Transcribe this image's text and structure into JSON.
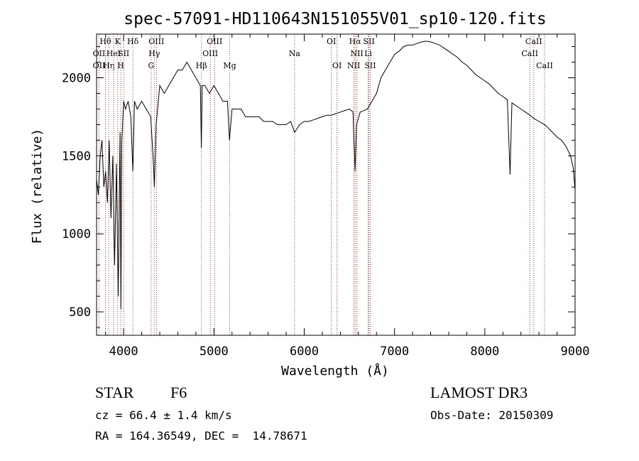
{
  "chart_data": {
    "type": "line",
    "title": "spec-57091-HD110643N151055V01_sp10-120.fits",
    "xlabel": "Wavelength (Å)",
    "ylabel": "Flux (relative)",
    "xlim": [
      3700,
      9000
    ],
    "ylim": [
      350,
      2280
    ],
    "x_ticks": [
      4000,
      5000,
      6000,
      7000,
      8000,
      9000
    ],
    "x_tick_labels": [
      "4000",
      "5000",
      "6000",
      "7000",
      "8000",
      "9000"
    ],
    "y_ticks": [
      500,
      1000,
      1500,
      2000
    ],
    "y_tick_labels": [
      "500",
      "1000",
      "1500",
      "2000"
    ],
    "series": [
      {
        "name": "spectrum",
        "x": [
          3700,
          3720,
          3740,
          3760,
          3780,
          3800,
          3820,
          3840,
          3860,
          3880,
          3900,
          3920,
          3940,
          3960,
          3970,
          3980,
          4000,
          4020,
          4050,
          4080,
          4102,
          4120,
          4150,
          4200,
          4250,
          4300,
          4330,
          4340,
          4360,
          4400,
          4450,
          4500,
          4550,
          4600,
          4650,
          4700,
          4750,
          4800,
          4850,
          4861,
          4870,
          4900,
          4950,
          5000,
          5050,
          5100,
          5150,
          5172,
          5200,
          5250,
          5300,
          5350,
          5400,
          5450,
          5500,
          5550,
          5600,
          5650,
          5700,
          5750,
          5800,
          5850,
          5893,
          5950,
          6000,
          6050,
          6100,
          6150,
          6200,
          6250,
          6300,
          6350,
          6400,
          6450,
          6500,
          6540,
          6563,
          6580,
          6620,
          6700,
          6750,
          6800,
          6850,
          6900,
          6950,
          7000,
          7050,
          7100,
          7150,
          7200,
          7250,
          7300,
          7350,
          7400,
          7450,
          7500,
          7550,
          7600,
          7650,
          7700,
          7750,
          7800,
          7850,
          7900,
          7950,
          8000,
          8050,
          8100,
          8150,
          8200,
          8250,
          8280,
          8300,
          8350,
          8400,
          8450,
          8500,
          8542,
          8600,
          8662,
          8700,
          8750,
          8800,
          8850,
          8900,
          8950,
          8980,
          9000
        ],
        "y": [
          1350,
          1250,
          1500,
          1600,
          1300,
          1400,
          1200,
          1600,
          1100,
          1500,
          800,
          1450,
          600,
          1650,
          520,
          1600,
          1850,
          1800,
          1850,
          1750,
          1400,
          1850,
          1800,
          1850,
          1800,
          1750,
          1450,
          1300,
          1700,
          1950,
          1900,
          1950,
          2000,
          2050,
          2050,
          2100,
          2050,
          2000,
          1950,
          1550,
          1950,
          1950,
          1900,
          1950,
          1900,
          1850,
          1850,
          1600,
          1800,
          1800,
          1800,
          1750,
          1750,
          1750,
          1750,
          1720,
          1720,
          1720,
          1700,
          1700,
          1700,
          1720,
          1650,
          1700,
          1720,
          1720,
          1730,
          1740,
          1750,
          1760,
          1760,
          1770,
          1780,
          1790,
          1800,
          1780,
          1400,
          1700,
          1780,
          1800,
          1850,
          1900,
          2000,
          2050,
          2100,
          2150,
          2170,
          2200,
          2210,
          2210,
          2220,
          2230,
          2235,
          2230,
          2220,
          2210,
          2190,
          2170,
          2150,
          2130,
          2100,
          2080,
          2050,
          2020,
          2000,
          1980,
          1960,
          1930,
          1900,
          1880,
          1860,
          1380,
          1840,
          1820,
          1800,
          1780,
          1760,
          1740,
          1720,
          1700,
          1680,
          1650,
          1620,
          1600,
          1560,
          1500,
          1420,
          1280
        ]
      }
    ],
    "line_markers": [
      {
        "label": "Hθ",
        "x": 3798,
        "row": 1
      },
      {
        "label": "OII",
        "x": 3727,
        "row": 2
      },
      {
        "label": "OII",
        "x": 3727,
        "row": 3
      },
      {
        "label": "Hη",
        "x": 3835,
        "row": 3
      },
      {
        "label": "HeI",
        "x": 3889,
        "row": 2
      },
      {
        "label": "K",
        "x": 3934,
        "row": 1
      },
      {
        "label": "SII",
        "x": 4000,
        "row": 2
      },
      {
        "label": "H",
        "x": 3968,
        "row": 3
      },
      {
        "label": "Hδ",
        "x": 4102,
        "row": 1
      },
      {
        "label": "OIII",
        "x": 4363,
        "row": 1
      },
      {
        "label": "Hγ",
        "x": 4340,
        "row": 2
      },
      {
        "label": "G",
        "x": 4305,
        "row": 3
      },
      {
        "label": "OIII",
        "x": 5007,
        "row": 1
      },
      {
        "label": "OIII",
        "x": 4959,
        "row": 2
      },
      {
        "label": "Hβ",
        "x": 4861,
        "row": 3
      },
      {
        "label": "Mg",
        "x": 5175,
        "row": 3
      },
      {
        "label": "Na",
        "x": 5893,
        "row": 2
      },
      {
        "label": "OI",
        "x": 6300,
        "row": 1
      },
      {
        "label": "OI",
        "x": 6363,
        "row": 3
      },
      {
        "label": "Hα",
        "x": 6563,
        "row": 1
      },
      {
        "label": "NII",
        "x": 6583,
        "row": 2
      },
      {
        "label": "NII",
        "x": 6548,
        "row": 3
      },
      {
        "label": "SII",
        "x": 6717,
        "row": 1
      },
      {
        "label": "Li",
        "x": 6708,
        "row": 2
      },
      {
        "label": "SII",
        "x": 6731,
        "row": 3
      },
      {
        "label": "CaII",
        "x": 8542,
        "row": 1
      },
      {
        "label": "CaII",
        "x": 8498,
        "row": 2
      },
      {
        "label": "CaII",
        "x": 8662,
        "row": 3
      }
    ]
  },
  "footer": {
    "object_type": "STAR",
    "spectral_class": "F6",
    "survey": "LAMOST DR3",
    "cz": "cz = 66.4 ± 1.4 km/s",
    "obs_date": "Obs-Date: 20150309",
    "coords": "RA = 164.36549, DEC =  14.78671"
  }
}
